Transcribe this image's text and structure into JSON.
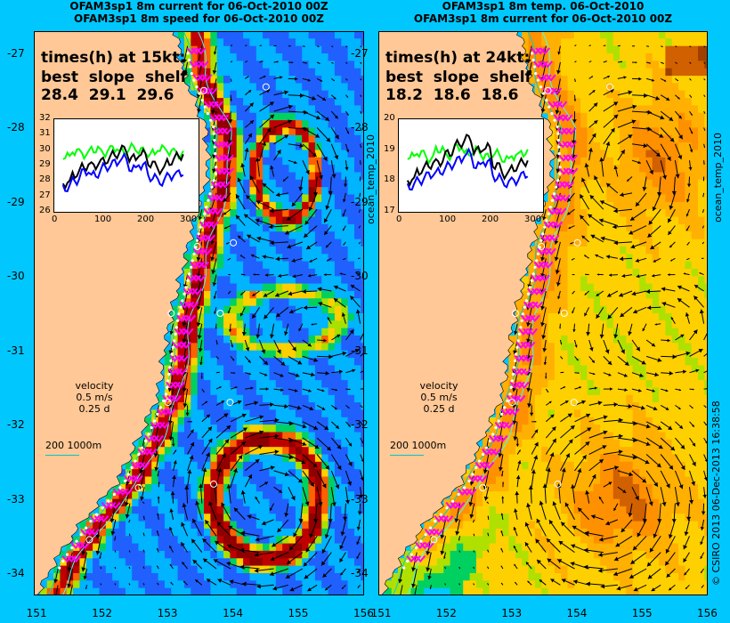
{
  "titles": {
    "left_line1": "OFAM3sp1 8m current for 06-Oct-2010 00Z",
    "left_line2": "OFAM3sp1 8m speed for 06-Oct-2010 00Z",
    "right_line1": "OFAM3sp1 8m temp. 06-Oct-2010",
    "right_line2": "OFAM3sp1 8m current for 06-Oct-2010 00Z"
  },
  "left_panel": {
    "header": "times(h) at 15kt:",
    "cols": "best  slope  shelf",
    "vals": "28.4  29.1  29.6",
    "inset_yticks": [
      "32",
      "31",
      "30",
      "29",
      "28",
      "27",
      "26"
    ],
    "inset_xticks": [
      "0",
      "100",
      "200",
      "300"
    ]
  },
  "right_panel": {
    "header": "times(h) at 24kt:",
    "cols": "best  slope  shelf",
    "vals": "18.2  18.6  18.6",
    "inset_yticks": [
      "20",
      "19",
      "18",
      "17"
    ],
    "inset_xticks": [
      "0",
      "100",
      "200",
      "300"
    ]
  },
  "legend": {
    "velocity": "velocity",
    "speed": "0.5 m/s",
    "time": "0.25 d",
    "scale_label": "200  1000m"
  },
  "side_labels": {
    "left_mid": "ocean_temp_2010",
    "right_top": "ocean_temp_2010",
    "right_bottom": "© CSIRO 2013   06-Dec-2013 16:38:58"
  },
  "chart_data": {
    "type": "heatmap",
    "xlabel": "",
    "ylabel": "",
    "x_ticks": [
      "151",
      "152",
      "153",
      "154",
      "155",
      "156"
    ],
    "y_ticks": [
      "-27",
      "-28",
      "-29",
      "-30",
      "-31",
      "-32",
      "-33",
      "-34"
    ],
    "xlim": [
      150.95,
      156.0
    ],
    "ylim": [
      -34.3,
      -26.7
    ],
    "left_field": "speed",
    "right_field": "temperature",
    "insets": [
      {
        "panel": "left",
        "ylim": [
          26,
          32
        ],
        "xlim": [
          0,
          330
        ],
        "series": [
          {
            "color": "#00ff00",
            "values": [
              29.6,
              29.9,
              29.7,
              30.0,
              29.8,
              30.1,
              29.9,
              30.2,
              30.0,
              29.8,
              30.1,
              29.9,
              29.7
            ]
          },
          {
            "color": "#000000",
            "values": [
              27.8,
              28.4,
              28.9,
              29.0,
              29.3,
              29.7,
              30.1,
              29.5,
              29.8,
              29.1,
              28.7,
              29.2,
              29.6
            ]
          },
          {
            "color": "#0000ff",
            "values": [
              27.5,
              28.0,
              28.6,
              28.4,
              28.9,
              29.2,
              29.5,
              28.8,
              29.0,
              28.2,
              27.9,
              28.3,
              28.5
            ]
          }
        ]
      },
      {
        "panel": "right",
        "ylim": [
          17,
          20
        ],
        "xlim": [
          0,
          330
        ],
        "series": [
          {
            "color": "#00ff00",
            "values": [
              18.8,
              18.9,
              18.7,
              19.0,
              18.8,
              19.1,
              18.9,
              19.0,
              18.8,
              18.9,
              18.7,
              18.8,
              18.9
            ]
          },
          {
            "color": "#000000",
            "values": [
              18.0,
              18.3,
              18.5,
              18.6,
              18.9,
              19.2,
              19.4,
              19.0,
              19.1,
              18.5,
              18.2,
              18.4,
              18.6
            ]
          },
          {
            "color": "#0000ff",
            "values": [
              17.8,
              18.0,
              18.2,
              18.3,
              18.5,
              18.7,
              18.9,
              18.5,
              18.6,
              18.1,
              17.9,
              18.0,
              18.2
            ]
          }
        ]
      }
    ]
  },
  "colors": {
    "background": "#00c8ff",
    "land": "#ffc896",
    "route": "#ff00ff"
  }
}
